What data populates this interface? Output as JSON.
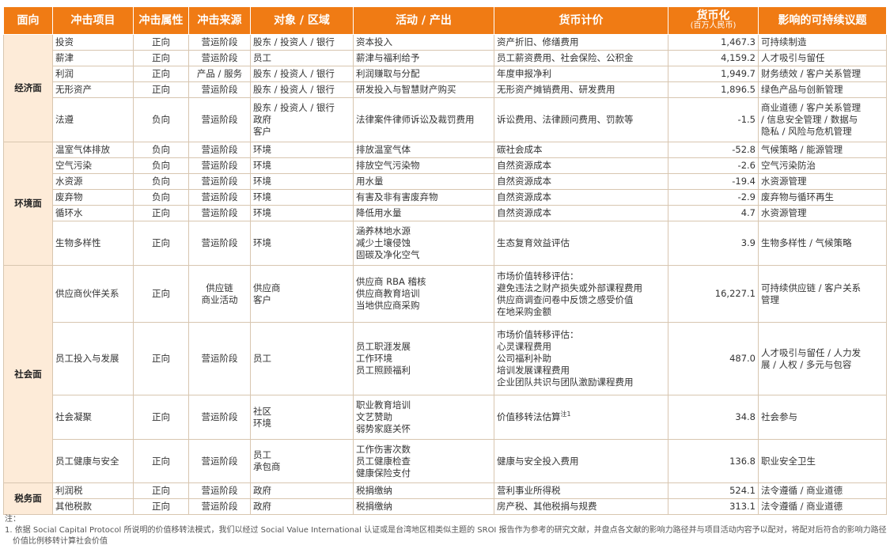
{
  "header": {
    "facet": "面向",
    "item": "冲击项目",
    "attribute": "冲击属性",
    "source": "冲击来源",
    "target": "对象 / 区域",
    "activity": "活动 / 产出",
    "valuation": "货币计价",
    "monetized": "货币化",
    "monetized_unit": "(百万人民币)",
    "issue": "影响的可持续议题"
  },
  "groups": [
    {
      "facet": "经济面",
      "rows": [
        {
          "item": "投资",
          "attr": "正向",
          "source": [
            "营运阶段"
          ],
          "target": [
            "股东 / 投资人 / 银行"
          ],
          "activity": [
            "资本投入"
          ],
          "valuation": [
            "资产折旧、修缮费用"
          ],
          "value": "1,467.3",
          "issue": [
            "可持续制造"
          ]
        },
        {
          "item": "薪津",
          "attr": "正向",
          "source": [
            "营运阶段"
          ],
          "target": [
            "员工"
          ],
          "activity": [
            "薪津与福利给予"
          ],
          "valuation": [
            "员工薪资费用、社会保险、公积金"
          ],
          "value": "4,159.2",
          "issue": [
            "人才吸引与留任"
          ]
        },
        {
          "item": "利润",
          "attr": "正向",
          "source": [
            "产品 / 服务"
          ],
          "target": [
            "股东 / 投资人 / 银行"
          ],
          "activity": [
            "利润赚取与分配"
          ],
          "valuation": [
            "年度申报净利"
          ],
          "value": "1,949.7",
          "issue": [
            "财务绩效 / 客户关系管理"
          ]
        },
        {
          "item": "无形资产",
          "attr": "正向",
          "source": [
            "营运阶段"
          ],
          "target": [
            "股东 / 投资人 / 银行"
          ],
          "activity": [
            "研发投入与智慧财产购买"
          ],
          "valuation": [
            "无形资产摊销费用、研发费用"
          ],
          "value": "1,896.5",
          "issue": [
            "绿色产品与创新管理"
          ]
        },
        {
          "item": "法遵",
          "attr": "负向",
          "source": [
            "营运阶段"
          ],
          "target": [
            "股东 / 投资人 / 银行",
            "政府",
            "客户"
          ],
          "activity": [
            "法律案件律师诉讼及裁罚费用"
          ],
          "valuation": [
            "诉讼费用、法律顾问费用、罚款等"
          ],
          "value": "-1.5",
          "issue": [
            "商业道德 / 客户关系管理",
            "/ 信息安全管理 / 数据与",
            "隐私 / 风险与危机管理"
          ]
        }
      ]
    },
    {
      "facet": "环境面",
      "rows": [
        {
          "item": "温室气体排放",
          "attr": "负向",
          "source": [
            "营运阶段"
          ],
          "target": [
            "环境"
          ],
          "activity": [
            "排放温室气体"
          ],
          "valuation": [
            "碳社会成本"
          ],
          "value": "-52.8",
          "issue": [
            "气候策略 / 能源管理"
          ]
        },
        {
          "item": "空气污染",
          "attr": "负向",
          "source": [
            "营运阶段"
          ],
          "target": [
            "环境"
          ],
          "activity": [
            "排放空气污染物"
          ],
          "valuation": [
            "自然资源成本"
          ],
          "value": "-2.6",
          "issue": [
            "空气污染防治"
          ]
        },
        {
          "item": "水资源",
          "attr": "负向",
          "source": [
            "营运阶段"
          ],
          "target": [
            "环境"
          ],
          "activity": [
            "用水量"
          ],
          "valuation": [
            "自然资源成本"
          ],
          "value": "-19.4",
          "issue": [
            "水资源管理"
          ]
        },
        {
          "item": "废弃物",
          "attr": "负向",
          "source": [
            "营运阶段"
          ],
          "target": [
            "环境"
          ],
          "activity": [
            "有害及非有害废弃物"
          ],
          "valuation": [
            "自然资源成本"
          ],
          "value": "-2.9",
          "issue": [
            "废弃物与循环再生"
          ]
        },
        {
          "item": "循环水",
          "attr": "正向",
          "source": [
            "营运阶段"
          ],
          "target": [
            "环境"
          ],
          "activity": [
            "降低用水量"
          ],
          "valuation": [
            "自然资源成本"
          ],
          "value": "4.7",
          "issue": [
            "水资源管理"
          ]
        },
        {
          "item": "生物多样性",
          "attr": "正向",
          "source": [
            "营运阶段"
          ],
          "target": [
            "环境"
          ],
          "activity": [
            "涵养林地水源",
            "减少土壤侵蚀",
            "固碳及净化空气"
          ],
          "valuation": [
            "生态复育效益评估"
          ],
          "value": "3.9",
          "issue": [
            "生物多样性 / 气候策略"
          ]
        }
      ]
    },
    {
      "facet": "社会面",
      "rows": [
        {
          "item": "供应商伙伴关系",
          "attr": "正向",
          "source": [
            "供应链",
            "商业活动"
          ],
          "target": [
            "供应商",
            "客户"
          ],
          "activity": [
            "供应商 RBA 稽核",
            "供应商教育培训",
            "当地供应商采购"
          ],
          "valuation": [
            "市场价值转移评估：",
            "避免违法之财产损失或外部课程费用",
            "供应商调查问卷中反馈之感受价值",
            "在地采购金额"
          ],
          "value": "16,227.1",
          "issue": [
            "可持续供应链 / 客户关系",
            "管理"
          ]
        },
        {
          "item": "员工投入与发展",
          "attr": "正向",
          "source": [
            "营运阶段"
          ],
          "target": [
            "员工"
          ],
          "activity": [
            "员工职涯发展",
            "工作环境",
            "员工照顾福利"
          ],
          "valuation": [
            "市场价值转移评估：",
            "心灵课程费用",
            "公司福利补助",
            "培训发展课程费用",
            "企业团队共识与团队激励课程费用"
          ],
          "value": "487.0",
          "issue": [
            "人才吸引与留任 / 人力发",
            "展 / 人权 / 多元与包容"
          ]
        },
        {
          "item": "社会凝聚",
          "attr": "正向",
          "source": [
            "营运阶段"
          ],
          "target": [
            "社区",
            "环境"
          ],
          "activity": [
            "职业教育培训",
            "文艺赞助",
            "弱势家庭关怀"
          ],
          "valuation": [
            "价值移转法估算"
          ],
          "valuation_note": "注1",
          "value": "34.8",
          "issue": [
            "社会参与"
          ]
        },
        {
          "item": "员工健康与安全",
          "attr": "正向",
          "source": [
            "营运阶段"
          ],
          "target": [
            "员工",
            "承包商"
          ],
          "activity": [
            "工作伤害次数",
            "员工健康检查",
            "健康保险支付"
          ],
          "valuation": [
            "健康与安全投入费用"
          ],
          "value": "136.8",
          "issue": [
            "职业安全卫生"
          ]
        }
      ]
    },
    {
      "facet": "税务面",
      "rows": [
        {
          "item": "利润税",
          "attr": "正向",
          "source": [
            "营运阶段"
          ],
          "target": [
            "政府"
          ],
          "activity": [
            "税捐缴纳"
          ],
          "valuation": [
            "营利事业所得税"
          ],
          "value": "524.1",
          "issue": [
            "法令遵循 / 商业道德"
          ]
        },
        {
          "item": "其他税款",
          "attr": "正向",
          "source": [
            "营运阶段"
          ],
          "target": [
            "政府"
          ],
          "activity": [
            "税捐缴纳"
          ],
          "valuation": [
            "房产税、其他税捐与规费"
          ],
          "value": "313.1",
          "issue": [
            "法令遵循 / 商业道德"
          ]
        }
      ]
    }
  ],
  "notes": {
    "title": "注：",
    "items": [
      "1. 依据 Social Capital Protocol 所说明的价值移转法模式，我们以经过 Social Value International 认证或是台湾地区相类似主题的 SROI 报告作为参考的研究文献，并盘点各文献的影响力路径并与项目活动内容予以配对，将配对后符合的影响力路径价值比例移转计算社会价值"
    ]
  },
  "colors": {
    "header_bg": "#f07b14",
    "facet_bg": "#fdebd8",
    "border": "#d8c6b0"
  }
}
